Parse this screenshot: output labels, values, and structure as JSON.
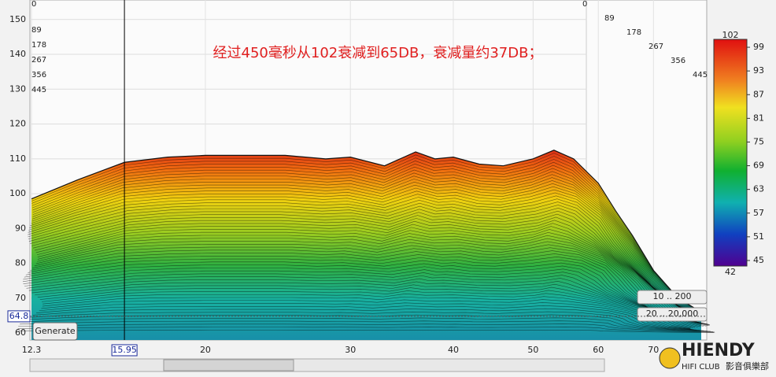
{
  "chart_data": {
    "type": "waterfall",
    "annotation": "经过450毫秒从102衰减到65DB，衰减量约37DB；",
    "x": [
      12.3,
      14,
      15.95,
      18,
      20,
      25,
      28,
      30,
      33,
      36,
      38,
      40,
      43,
      46,
      50,
      53,
      56,
      60,
      63,
      66,
      70,
      75,
      80
    ],
    "series": [
      {
        "values": [
          98.5,
          104,
          109,
          110.5,
          111,
          111,
          110,
          110.5,
          108,
          112,
          110,
          110.5,
          108.5,
          108,
          110,
          112.5,
          110,
          103,
          95,
          88,
          78,
          70,
          66
        ]
      }
    ],
    "xlim": [
      12.3,
      80
    ],
    "log_x": true,
    "xticks": [
      12.3,
      20,
      30,
      40,
      50,
      60,
      70
    ],
    "ylim": [
      58,
      155.6
    ],
    "yticks": [
      60,
      70,
      80,
      90,
      100,
      110,
      120,
      130,
      140,
      150
    ],
    "time_labels": [
      0,
      89,
      178,
      267,
      356,
      445
    ],
    "cursor_x": 15.95,
    "cursor_y": 64.8,
    "colorbar": {
      "lim": [
        42,
        102
      ],
      "ticks": [
        45,
        51,
        57,
        63,
        69,
        75,
        81,
        87,
        93,
        99
      ]
    },
    "buttons": [
      "Generate",
      "10 .. 200",
      "20 .. 20,000"
    ],
    "watermark": {
      "brand": "HIENDY",
      "sub": "HIFI CLUB",
      "cn": "影音俱樂部"
    }
  }
}
